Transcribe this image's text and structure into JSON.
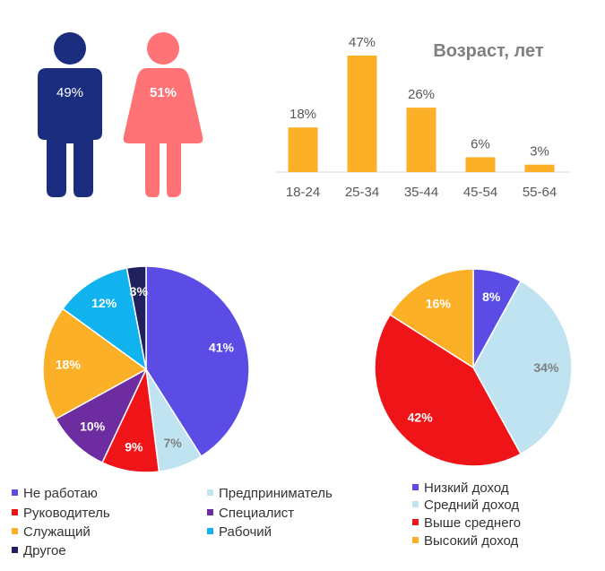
{
  "gender": {
    "male": {
      "percent": "49%",
      "color": "#1b2d7e"
    },
    "female": {
      "percent": "51%",
      "color": "#ff7275"
    }
  },
  "chart_data": [
    {
      "type": "bar",
      "title": "Возраст, лет",
      "categories": [
        "18-24",
        "25-34",
        "35-44",
        "45-54",
        "55-64"
      ],
      "values": [
        18,
        47,
        26,
        6,
        3
      ],
      "data_labels": [
        "18%",
        "47%",
        "26%",
        "6%",
        "3%"
      ],
      "ylim": [
        0,
        47
      ],
      "color": "#fbb027",
      "grid": false
    },
    {
      "type": "pie",
      "slices": [
        {
          "name": "Не работаю",
          "value": 41,
          "label": "41%",
          "color": "#5a4ce4"
        },
        {
          "name": "Предприниматель",
          "value": 7,
          "label": "7%",
          "color": "#bfe3f1"
        },
        {
          "name": "Руководитель",
          "value": 9,
          "label": "9%",
          "color": "#ef1418"
        },
        {
          "name": "Специалист",
          "value": 10,
          "label": "10%",
          "color": "#6d2da0"
        },
        {
          "name": "Служащий",
          "value": 18,
          "label": "18%",
          "color": "#fbb027"
        },
        {
          "name": "Рабочий",
          "value": 12,
          "label": "12%",
          "color": "#11b3ef"
        },
        {
          "name": "Другое",
          "value": 3,
          "label": "3%",
          "color": "#20205f"
        }
      ]
    },
    {
      "type": "pie",
      "slices": [
        {
          "name": "Низкий доход",
          "value": 8,
          "label": "8%",
          "color": "#5a4ce4"
        },
        {
          "name": "Средний доход",
          "value": 34,
          "label": "34%",
          "color": "#bfe3f1"
        },
        {
          "name": "Выше среднего",
          "value": 42,
          "label": "42%",
          "color": "#ef1418"
        },
        {
          "name": "Высокий доход",
          "value": 16,
          "label": "16%",
          "color": "#fbb027"
        }
      ]
    }
  ]
}
